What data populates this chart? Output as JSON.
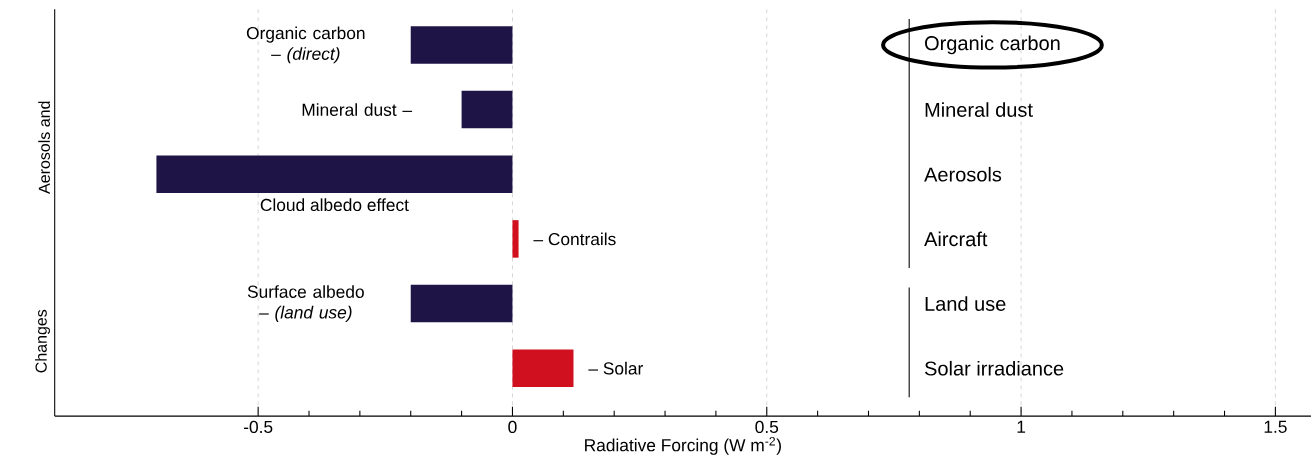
{
  "chart_data": {
    "type": "bar",
    "orientation": "horizontal",
    "xlabel": "Radiative Forcing  (W m$^{-2}$)",
    "categories": [
      "Organic carbon – *(direct)*",
      "Mineral dust –",
      "Cloud albedo effect",
      "– Contrails",
      "Surface albedo – *(land use)*",
      "– Solar"
    ],
    "values": [
      -0.2,
      -0.1,
      -0.7,
      0.012,
      -0.2,
      0.12
    ],
    "colors": [
      "#1f1446",
      "#1f1446",
      "#1f1446",
      "#d0101f",
      "#1f1446",
      "#d0101f"
    ],
    "xlim": [
      -0.9,
      1.57
    ],
    "xticks": [
      -0.5,
      0,
      0.5,
      1,
      1.5
    ],
    "grid": "x",
    "annotations": [
      "Organic carbon",
      "Mineral dust",
      "Aerosols",
      "Aircraft",
      "Land use",
      "Solar irradiance",
      "Aerosols and",
      "Changes"
    ]
  }
}
